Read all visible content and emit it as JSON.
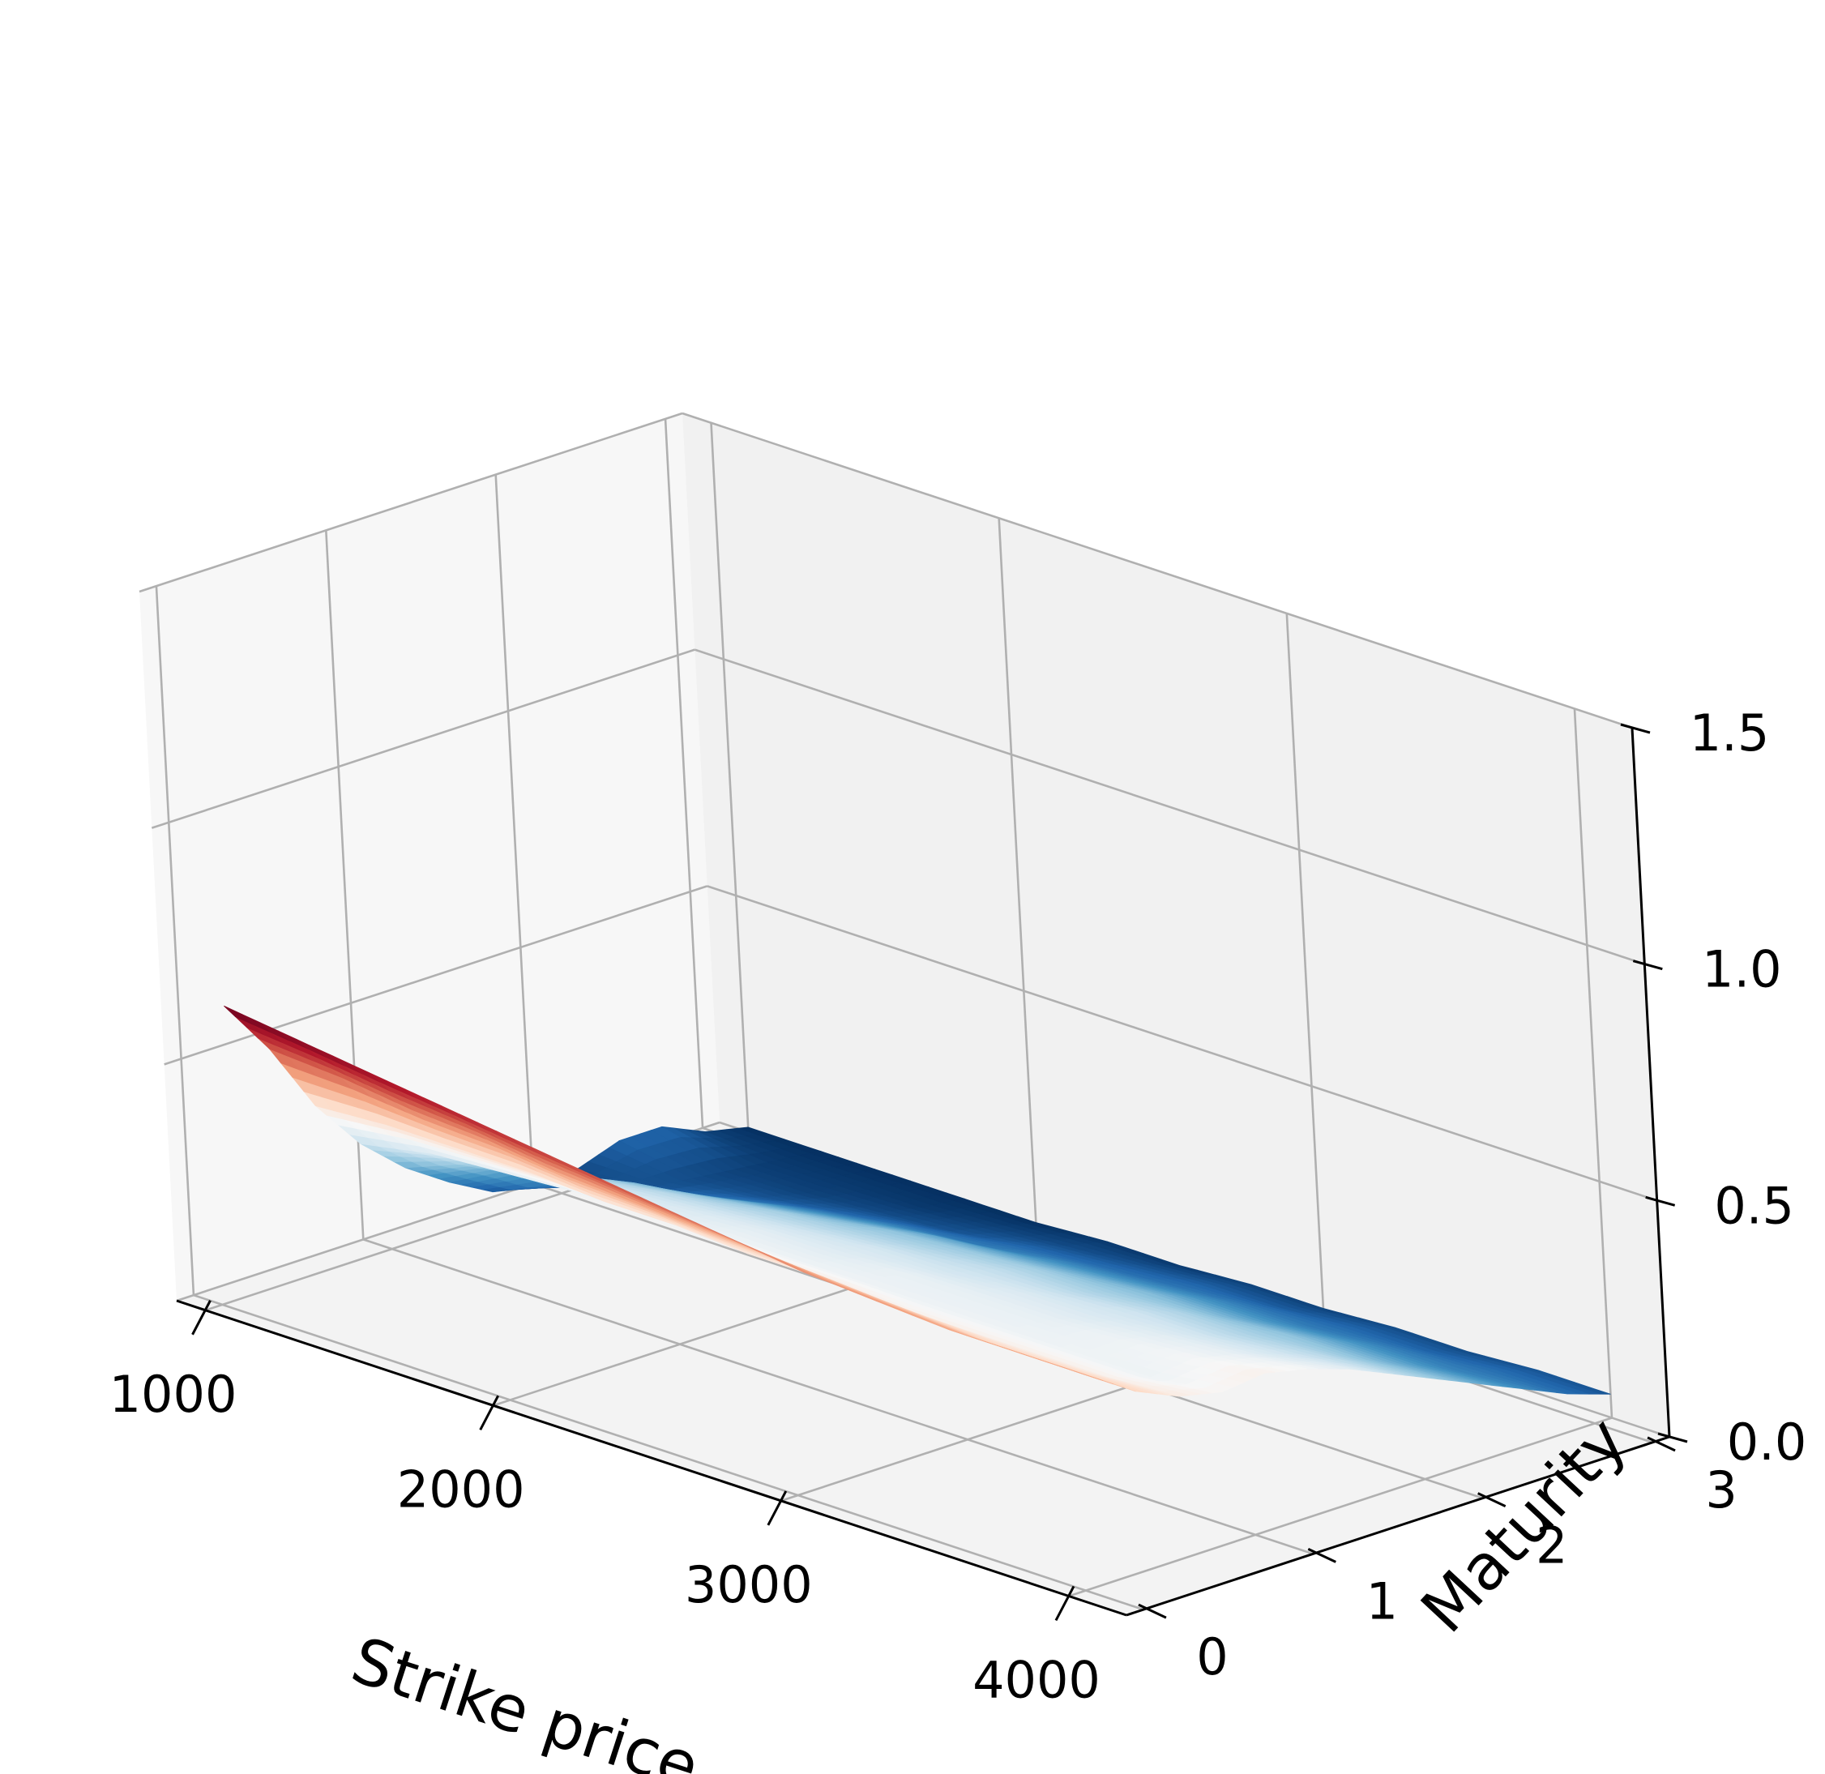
{
  "chart_data": {
    "type": "surface",
    "title": "",
    "xlabel": "Strike price",
    "ylabel": "Maturity",
    "zlabel": "",
    "xlim": [
      900,
      4200
    ],
    "ylim": [
      -0.1,
      3.1
    ],
    "zlim": [
      0,
      1.5
    ],
    "x_ticks": [
      {
        "value": 1000,
        "label": "1000"
      },
      {
        "value": 2000,
        "label": "2000"
      },
      {
        "value": 3000,
        "label": "3000"
      },
      {
        "value": 4000,
        "label": "4000"
      }
    ],
    "y_ticks": [
      {
        "value": 0,
        "label": "0"
      },
      {
        "value": 1,
        "label": "1"
      },
      {
        "value": 2,
        "label": "2"
      },
      {
        "value": 3,
        "label": "3"
      }
    ],
    "z_ticks": [
      {
        "value": 0.0,
        "label": "0.0"
      },
      {
        "value": 0.5,
        "label": "0.5"
      },
      {
        "value": 1.0,
        "label": "1.0"
      },
      {
        "value": 1.5,
        "label": "1.5"
      }
    ],
    "colormap": "RdBu",
    "colormap_stops": [
      "#67001f",
      "#b2182b",
      "#d6604d",
      "#f4a582",
      "#fddbc7",
      "#f7f7f7",
      "#d1e5f0",
      "#92c5de",
      "#4393c3",
      "#2166ac",
      "#053061"
    ],
    "surface": {
      "strike": [
        1000,
        1250,
        1500,
        1750,
        2000,
        2250,
        2500,
        2750,
        3000,
        3250,
        3500,
        3750,
        4000
      ],
      "maturity": [
        0.1,
        0.35,
        0.6,
        0.85,
        1.1,
        1.35,
        1.6,
        1.85,
        2.1,
        2.35,
        2.6,
        2.85,
        3.1
      ],
      "implied_volatility": [
        [
          0.62,
          0.6,
          0.58,
          0.56,
          0.54,
          0.52,
          0.5,
          0.48,
          0.46,
          0.45,
          0.44,
          0.44,
          0.44
        ],
        [
          0.5,
          0.49,
          0.47,
          0.46,
          0.44,
          0.43,
          0.42,
          0.41,
          0.4,
          0.39,
          0.38,
          0.38,
          0.38
        ],
        [
          0.35,
          0.36,
          0.36,
          0.36,
          0.35,
          0.35,
          0.34,
          0.34,
          0.33,
          0.33,
          0.33,
          0.33,
          0.34
        ],
        [
          0.24,
          0.27,
          0.28,
          0.29,
          0.29,
          0.3,
          0.3,
          0.3,
          0.3,
          0.3,
          0.3,
          0.3,
          0.32
        ],
        [
          0.16,
          0.22,
          0.25,
          0.26,
          0.27,
          0.28,
          0.28,
          0.29,
          0.29,
          0.29,
          0.3,
          0.31,
          0.33
        ],
        [
          0.1,
          0.18,
          0.21,
          0.23,
          0.24,
          0.25,
          0.26,
          0.26,
          0.27,
          0.27,
          0.28,
          0.29,
          0.31
        ],
        [
          0.05,
          0.12,
          0.17,
          0.19,
          0.21,
          0.22,
          0.23,
          0.24,
          0.24,
          0.25,
          0.25,
          0.26,
          0.28
        ],
        [
          0.03,
          0.08,
          0.12,
          0.15,
          0.17,
          0.19,
          0.2,
          0.21,
          0.21,
          0.22,
          0.22,
          0.23,
          0.24
        ],
        [
          0.04,
          0.05,
          0.08,
          0.11,
          0.13,
          0.15,
          0.16,
          0.17,
          0.18,
          0.18,
          0.19,
          0.19,
          0.2
        ],
        [
          0.07,
          0.04,
          0.05,
          0.07,
          0.09,
          0.1,
          0.12,
          0.13,
          0.14,
          0.14,
          0.15,
          0.15,
          0.16
        ],
        [
          0.07,
          0.03,
          0.03,
          0.04,
          0.05,
          0.07,
          0.08,
          0.09,
          0.1,
          0.1,
          0.11,
          0.11,
          0.12
        ],
        [
          0.03,
          0.02,
          0.02,
          0.02,
          0.03,
          0.04,
          0.05,
          0.06,
          0.06,
          0.07,
          0.07,
          0.08,
          0.08
        ],
        [
          0.01,
          0.01,
          0.01,
          0.01,
          0.01,
          0.02,
          0.02,
          0.03,
          0.03,
          0.04,
          0.04,
          0.05,
          0.05
        ]
      ]
    }
  }
}
